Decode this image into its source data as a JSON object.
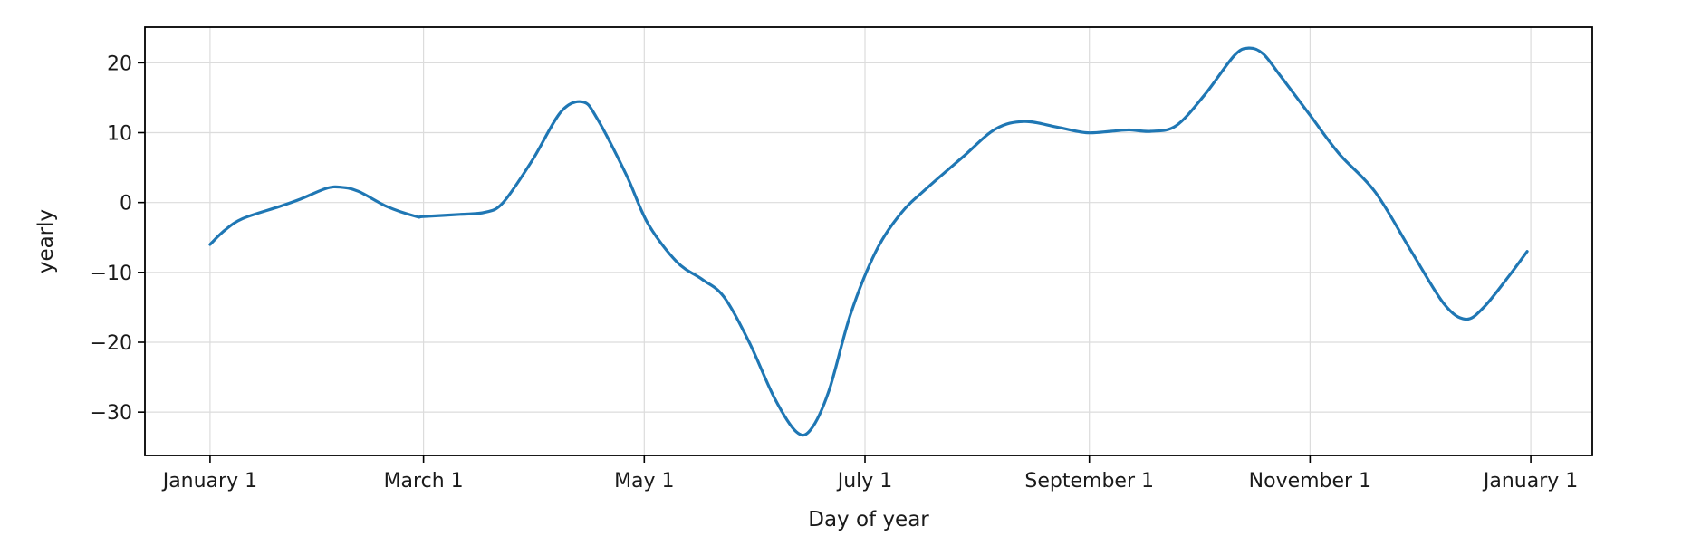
{
  "chart_data": {
    "type": "line",
    "xlabel": "Day of year",
    "ylabel": "yearly",
    "x_tick_labels": [
      "January 1",
      "March 1",
      "May 1",
      "July 1",
      "September 1",
      "November 1",
      "January 1"
    ],
    "x_tick_days": [
      1,
      60,
      121,
      182,
      244,
      305,
      366
    ],
    "y_ticks": [
      20,
      10,
      0,
      -10,
      -20,
      -30
    ],
    "y_tick_labels": [
      "20",
      "10",
      "0",
      "−10",
      "−20",
      "−30"
    ],
    "xlim": [
      -17,
      383
    ],
    "ylim": [
      -36.2,
      25.1
    ],
    "grid": true,
    "series": [
      {
        "color": "#1f77b4",
        "points": [
          [
            1,
            -6
          ],
          [
            5,
            -4
          ],
          [
            10,
            -2.3
          ],
          [
            20,
            -0.6
          ],
          [
            26,
            0.5
          ],
          [
            33,
            2.0
          ],
          [
            37,
            2.2
          ],
          [
            42,
            1.6
          ],
          [
            50,
            -0.6
          ],
          [
            58,
            -2.0
          ],
          [
            60,
            -2.0
          ],
          [
            70,
            -1.7
          ],
          [
            77,
            -1.4
          ],
          [
            82,
            0
          ],
          [
            90,
            6
          ],
          [
            98,
            13.0
          ],
          [
            104,
            14.4
          ],
          [
            108,
            12.0
          ],
          [
            116,
            4.0
          ],
          [
            122,
            -3.0
          ],
          [
            130,
            -8.5
          ],
          [
            137,
            -11.0
          ],
          [
            143,
            -13.5
          ],
          [
            150,
            -20.0
          ],
          [
            157,
            -28.0
          ],
          [
            163,
            -32.8
          ],
          [
            167,
            -32.5
          ],
          [
            172,
            -27.0
          ],
          [
            178,
            -16.0
          ],
          [
            185,
            -7.0
          ],
          [
            192,
            -1.5
          ],
          [
            199,
            2.0
          ],
          [
            209,
            6.5
          ],
          [
            218,
            10.5
          ],
          [
            226,
            11.6
          ],
          [
            235,
            10.8
          ],
          [
            243,
            10.0
          ],
          [
            250,
            10.2
          ],
          [
            255,
            10.4
          ],
          [
            261,
            10.2
          ],
          [
            268,
            11.0
          ],
          [
            276,
            15.5
          ],
          [
            284,
            21.0
          ],
          [
            288,
            22.1
          ],
          [
            292,
            21.3
          ],
          [
            297,
            18.0
          ],
          [
            305,
            12.5
          ],
          [
            313,
            7.0
          ],
          [
            323,
            1.5
          ],
          [
            333,
            -7.0
          ],
          [
            342,
            -14.5
          ],
          [
            348,
            -16.7
          ],
          [
            353,
            -15.0
          ],
          [
            360,
            -10.5
          ],
          [
            365,
            -7.0
          ]
        ]
      }
    ]
  }
}
